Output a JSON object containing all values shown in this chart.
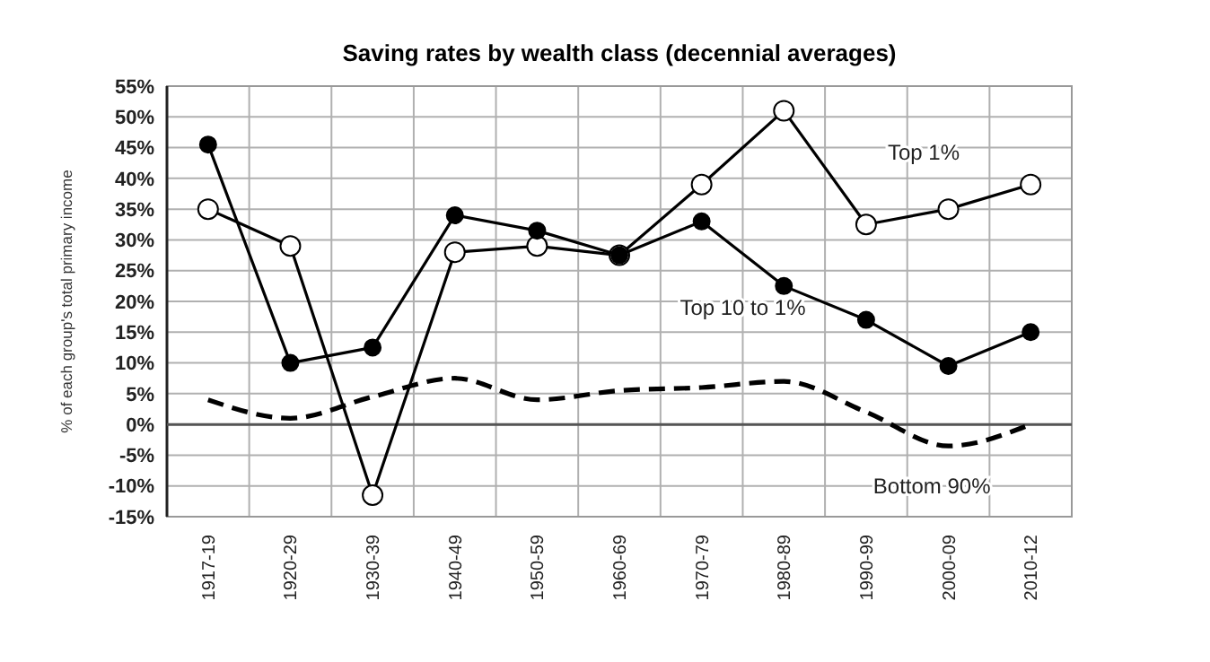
{
  "chart_data": {
    "type": "line",
    "title": "Saving rates by wealth class (decennial averages)",
    "ylabel": "% of each group's total primary income",
    "categories": [
      "1917-19",
      "1920-29",
      "1930-39",
      "1940-49",
      "1950-59",
      "1960-69",
      "1970-79",
      "1980-89",
      "1990-99",
      "2000-09",
      "2010-12"
    ],
    "series": [
      {
        "name": "Top 1%",
        "color": "#000000",
        "marker": "circle",
        "line_style": "solid",
        "values": [
          35,
          29,
          -11.5,
          28,
          29,
          27.5,
          39,
          51,
          32.5,
          35,
          39
        ]
      },
      {
        "name": "Top 10 to 1%",
        "color": "#000000",
        "marker": "circle",
        "line_style": "solid",
        "values": [
          45.5,
          10,
          12.5,
          34,
          31.5,
          27.5,
          33,
          22.5,
          17,
          9.5,
          15
        ]
      },
      {
        "name": "Bottom 90%",
        "color": "#000000",
        "marker": "none",
        "line_style": "dashed",
        "values": [
          4,
          1,
          4.5,
          7.5,
          4,
          5.5,
          6,
          7,
          2,
          -3.5,
          0
        ]
      }
    ],
    "ylim": [
      -15,
      55
    ],
    "yticks": [
      {
        "value": -15,
        "label": "-15%"
      },
      {
        "value": -10,
        "label": "-10%"
      },
      {
        "value": -5,
        "label": "-5%"
      },
      {
        "value": 0,
        "label": "0%"
      },
      {
        "value": 5,
        "label": "5%"
      },
      {
        "value": 10,
        "label": "10%"
      },
      {
        "value": 15,
        "label": "15%"
      },
      {
        "value": 20,
        "label": "20%"
      },
      {
        "value": 25,
        "label": "25%"
      },
      {
        "value": 30,
        "label": "30%"
      },
      {
        "value": 35,
        "label": "35%"
      },
      {
        "value": 40,
        "label": "40%"
      },
      {
        "value": 45,
        "label": "45%"
      },
      {
        "value": 50,
        "label": "50%"
      },
      {
        "value": 55,
        "label": "55%"
      }
    ],
    "grid": true,
    "ref_lines": [
      {
        "axis": "y",
        "value": 0,
        "color": "#555555"
      }
    ]
  }
}
